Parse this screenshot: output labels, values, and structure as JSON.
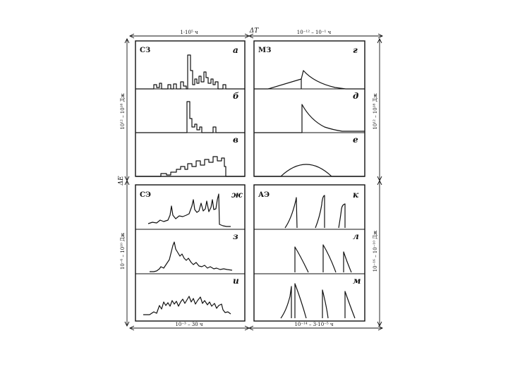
{
  "quadrants": {
    "sz": "СЗ",
    "mz": "МЗ",
    "se": "СЭ",
    "ae": "АЭ"
  },
  "panel_letters": [
    "а",
    "б",
    "в",
    "г",
    "д",
    "е",
    "ж",
    "з",
    "и",
    "к",
    "л",
    "м"
  ],
  "dims": {
    "top_left": "1·10⁵ ч",
    "top_center": "ΔT",
    "top_right": "10⁻¹² – 10⁻¹ ч",
    "left_upper": "10¹² – 10¹⁸ Дж",
    "left_center": "ΔE",
    "left_lower": "10⁻⁶ – 10¹⁰ Дж",
    "right_upper": "10¹² – 10¹⁸ Дж",
    "right_lower": "10⁻¹⁶ – 10⁻¹⁰ Дж",
    "bottom_left": "10⁻³ – 30 ч",
    "bottom_right": "10⁻¹⁴ – 3·10⁻⁵ ч"
  },
  "colors": {
    "ink": "#111111",
    "paper": "#ffffff"
  }
}
